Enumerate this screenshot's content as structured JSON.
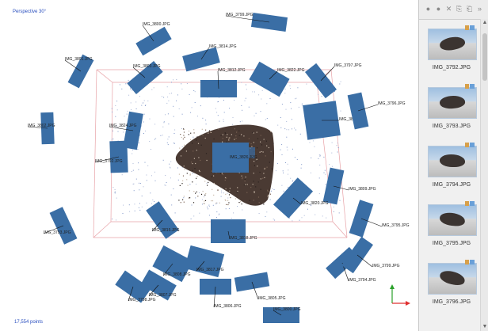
{
  "viewport": {
    "title": "Perspective 30°",
    "points_label": "17,554 points",
    "camera_labels": [
      "IMG_3799.JPG",
      "IMG_3800.JPG",
      "IMG_3801.JPG",
      "IMG_3802.JPG",
      "IMG_3803.JPG",
      "IMG_3812.JPG",
      "IMG_3822.JPG",
      "IMG_3797.JPG",
      "IMG_3810.JPG",
      "IMG_3796.JPG",
      "IMG_3792.JPG",
      "IMG_3824.JPG",
      "IMG_3814.JPG",
      "IMG_3815.JPG",
      "IMG_3809.JPG",
      "IMG_3820.JPG",
      "IMG_3795.JPG",
      "IMG_3793.JPG",
      "IMG_3818.JPG",
      "IMG_3817.JPG",
      "IMG_3808.JPG",
      "IMG_3807.JPG",
      "IMG_3806.JPG",
      "IMG_3805.JPG",
      "IMG_3794.JPG",
      "IMG_3798.JPG"
    ],
    "center_label": "IMG_3826.JPG",
    "axes": {
      "x_color": "#e03030",
      "y_color": "#2aa02a"
    }
  },
  "panel": {
    "toolbar_icons": [
      "refresh-icon",
      "remove-icon",
      "close-icon",
      "copy-icon",
      "paste-icon",
      "expand-icon"
    ],
    "toolbar_glyphs": [
      "●",
      "●",
      "✕",
      "⎘",
      "⎗",
      "»"
    ],
    "thumbnails": [
      "IMG_3792.JPG",
      "IMG_3793.JPG",
      "IMG_3794.JPG",
      "IMG_3795.JPG",
      "IMG_3796.JPG"
    ]
  }
}
